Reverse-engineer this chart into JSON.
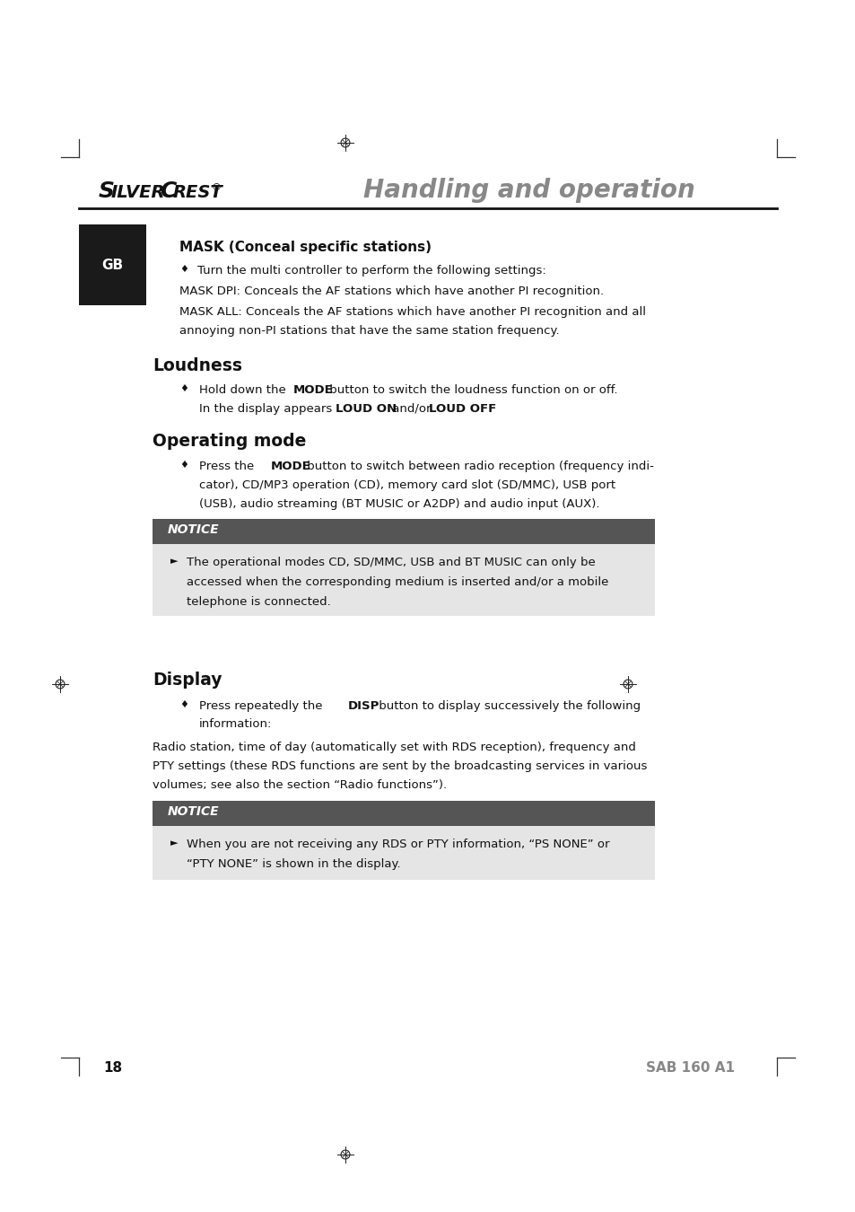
{
  "page_bg": "#ffffff",
  "page_width": 9.54,
  "page_height": 13.5,
  "dpi": 100,
  "header": {
    "brand_silver": "S",
    "brand_ilver": "ILVER",
    "brand_C": "C",
    "brand_rest": "REST",
    "brand_super": "®",
    "section_title": "Handling and operation",
    "section_color": "#888888"
  },
  "gb_box": {
    "color": "#1a1a1a",
    "text": "GB",
    "text_color": "#ffffff"
  },
  "mask_section": {
    "title": "MASK (Conceal specific stations)",
    "bullet1": "Turn the multi controller to perform the following settings:",
    "line1": "MASK DPI: Conceals the AF stations which have another PI recognition.",
    "line2": "MASK ALL: Conceals the AF stations which have another PI recognition and all",
    "line3": "annoying non-PI stations that have the same station frequency."
  },
  "loudness_section": {
    "title": "Loudness"
  },
  "operating_section": {
    "title": "Operating mode",
    "notice_title": "NOTICE",
    "notice_bg": "#555555",
    "notice_light_bg": "#e5e5e5"
  },
  "display_section": {
    "title": "Display",
    "notice_title": "NOTICE",
    "notice_bg": "#555555",
    "notice_light_bg": "#e5e5e5"
  },
  "footer": {
    "page_number": "18",
    "model": "SAB 160 A1",
    "model_color": "#888888"
  }
}
